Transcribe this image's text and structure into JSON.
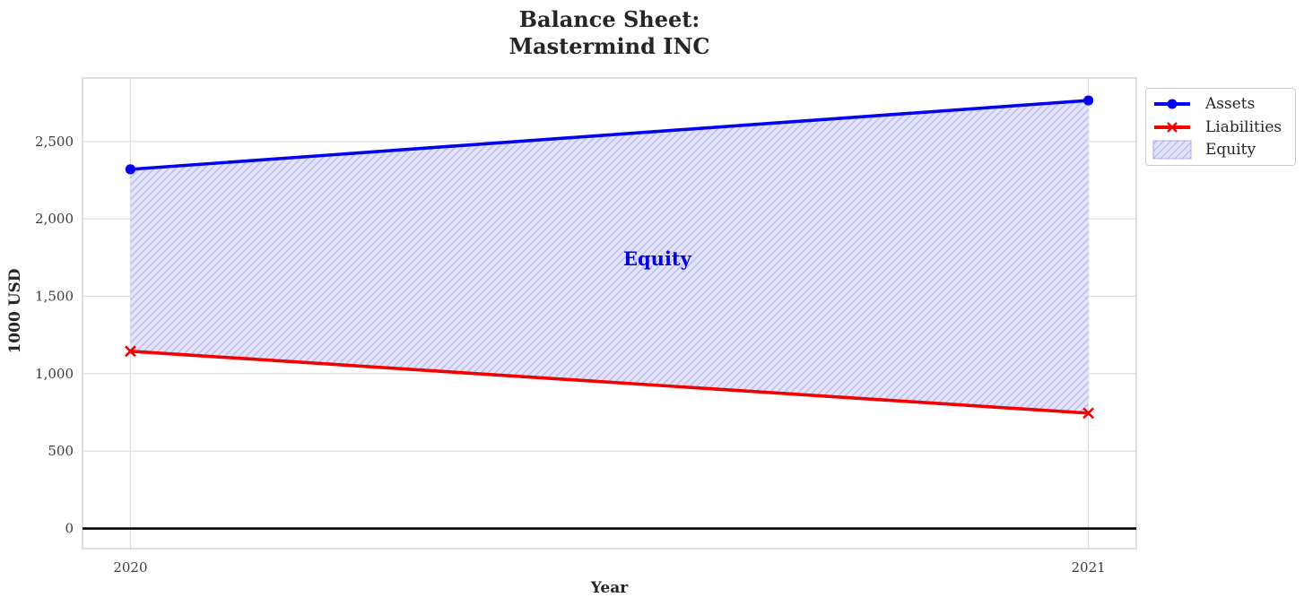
{
  "title": "Balance Sheet:\nMastermind INC",
  "chart_data": {
    "type": "line",
    "title": "Balance Sheet: Mastermind INC",
    "x": [
      2020,
      2021
    ],
    "x_tick_labels": [
      "2020",
      "2021"
    ],
    "series": [
      {
        "name": "Assets",
        "values": [
          2320,
          2765
        ],
        "color": "#0202f0",
        "marker": "circle",
        "line_width": 3.6
      },
      {
        "name": "Liabilities",
        "values": [
          1145,
          745
        ],
        "color": "#f20000",
        "marker": "x",
        "line_width": 3.6
      }
    ],
    "area": {
      "name": "Equity",
      "between": [
        "Assets",
        "Liabilities"
      ],
      "values": [
        1175,
        2020
      ],
      "fill_color": "#e4e4f9",
      "hatch_color": "#bdbdf0",
      "hatch_style": "///"
    },
    "annotation": {
      "text": "Equity",
      "x": 2020.55,
      "y": 1740,
      "color": "#0000e8"
    },
    "xlabel": "Year",
    "ylabel": "1000 USD",
    "yticks": [
      0,
      500,
      1000,
      1500,
      2000,
      2500
    ],
    "ytick_labels": [
      "0",
      "500",
      "1,000",
      "1,500",
      "2,000",
      "2,500"
    ],
    "xlim": [
      2019.95,
      2021.05
    ],
    "ylim": [
      -130,
      2910
    ],
    "zero_line_value": 0,
    "grid": true,
    "grid_color": "#dcdcdc",
    "spine_color": "#d0d0d0",
    "tick_label_color": "#3d3d3d",
    "legend": {
      "position": "outside-top-right",
      "entries": [
        {
          "label": "Assets",
          "swatch": "line-circle",
          "color": "#0202f0"
        },
        {
          "label": "Liabilities",
          "swatch": "line-x",
          "color": "#f20000"
        },
        {
          "label": "Equity",
          "swatch": "hatched-patch",
          "color": "#e4e4f9"
        }
      ]
    }
  }
}
